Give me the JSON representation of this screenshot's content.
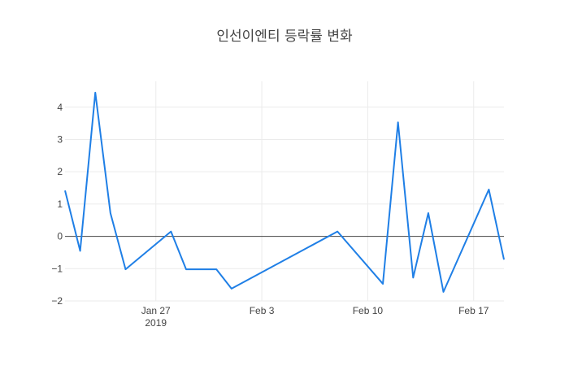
{
  "chart_data": {
    "type": "line",
    "title": "인선이엔티 등락률 변화",
    "xlabel": "",
    "ylabel": "",
    "x_range": [
      "2019-01-21",
      "2019-02-19"
    ],
    "ylim": [
      -2.0,
      4.8
    ],
    "grid": true,
    "zero_line": true,
    "x_ticks": [
      {
        "date": "2019-01-27",
        "label": "Jan 27",
        "sublabel": "2019"
      },
      {
        "date": "2019-02-03",
        "label": "Feb 3",
        "sublabel": ""
      },
      {
        "date": "2019-02-10",
        "label": "Feb 10",
        "sublabel": ""
      },
      {
        "date": "2019-02-17",
        "label": "Feb 17",
        "sublabel": ""
      }
    ],
    "y_ticks": [
      {
        "value": -2,
        "label": "−2"
      },
      {
        "value": -1,
        "label": "−1"
      },
      {
        "value": 0,
        "label": "0"
      },
      {
        "value": 1,
        "label": "1"
      },
      {
        "value": 2,
        "label": "2"
      },
      {
        "value": 3,
        "label": "3"
      },
      {
        "value": 4,
        "label": "4"
      }
    ],
    "series": [
      {
        "color": "#1f7fe6",
        "x": [
          "2019-01-21",
          "2019-01-22",
          "2019-01-23",
          "2019-01-24",
          "2019-01-25",
          "2019-01-28",
          "2019-01-29",
          "2019-01-31",
          "2019-02-01",
          "2019-02-08",
          "2019-02-11",
          "2019-02-12",
          "2019-02-13",
          "2019-02-14",
          "2019-02-15",
          "2019-02-18",
          "2019-02-19"
        ],
        "y": [
          1.42,
          -0.45,
          4.45,
          0.72,
          -1.02,
          0.15,
          -1.02,
          -1.02,
          -1.62,
          0.15,
          -1.47,
          3.53,
          -1.28,
          0.72,
          -1.72,
          1.45,
          -0.72
        ]
      }
    ]
  }
}
